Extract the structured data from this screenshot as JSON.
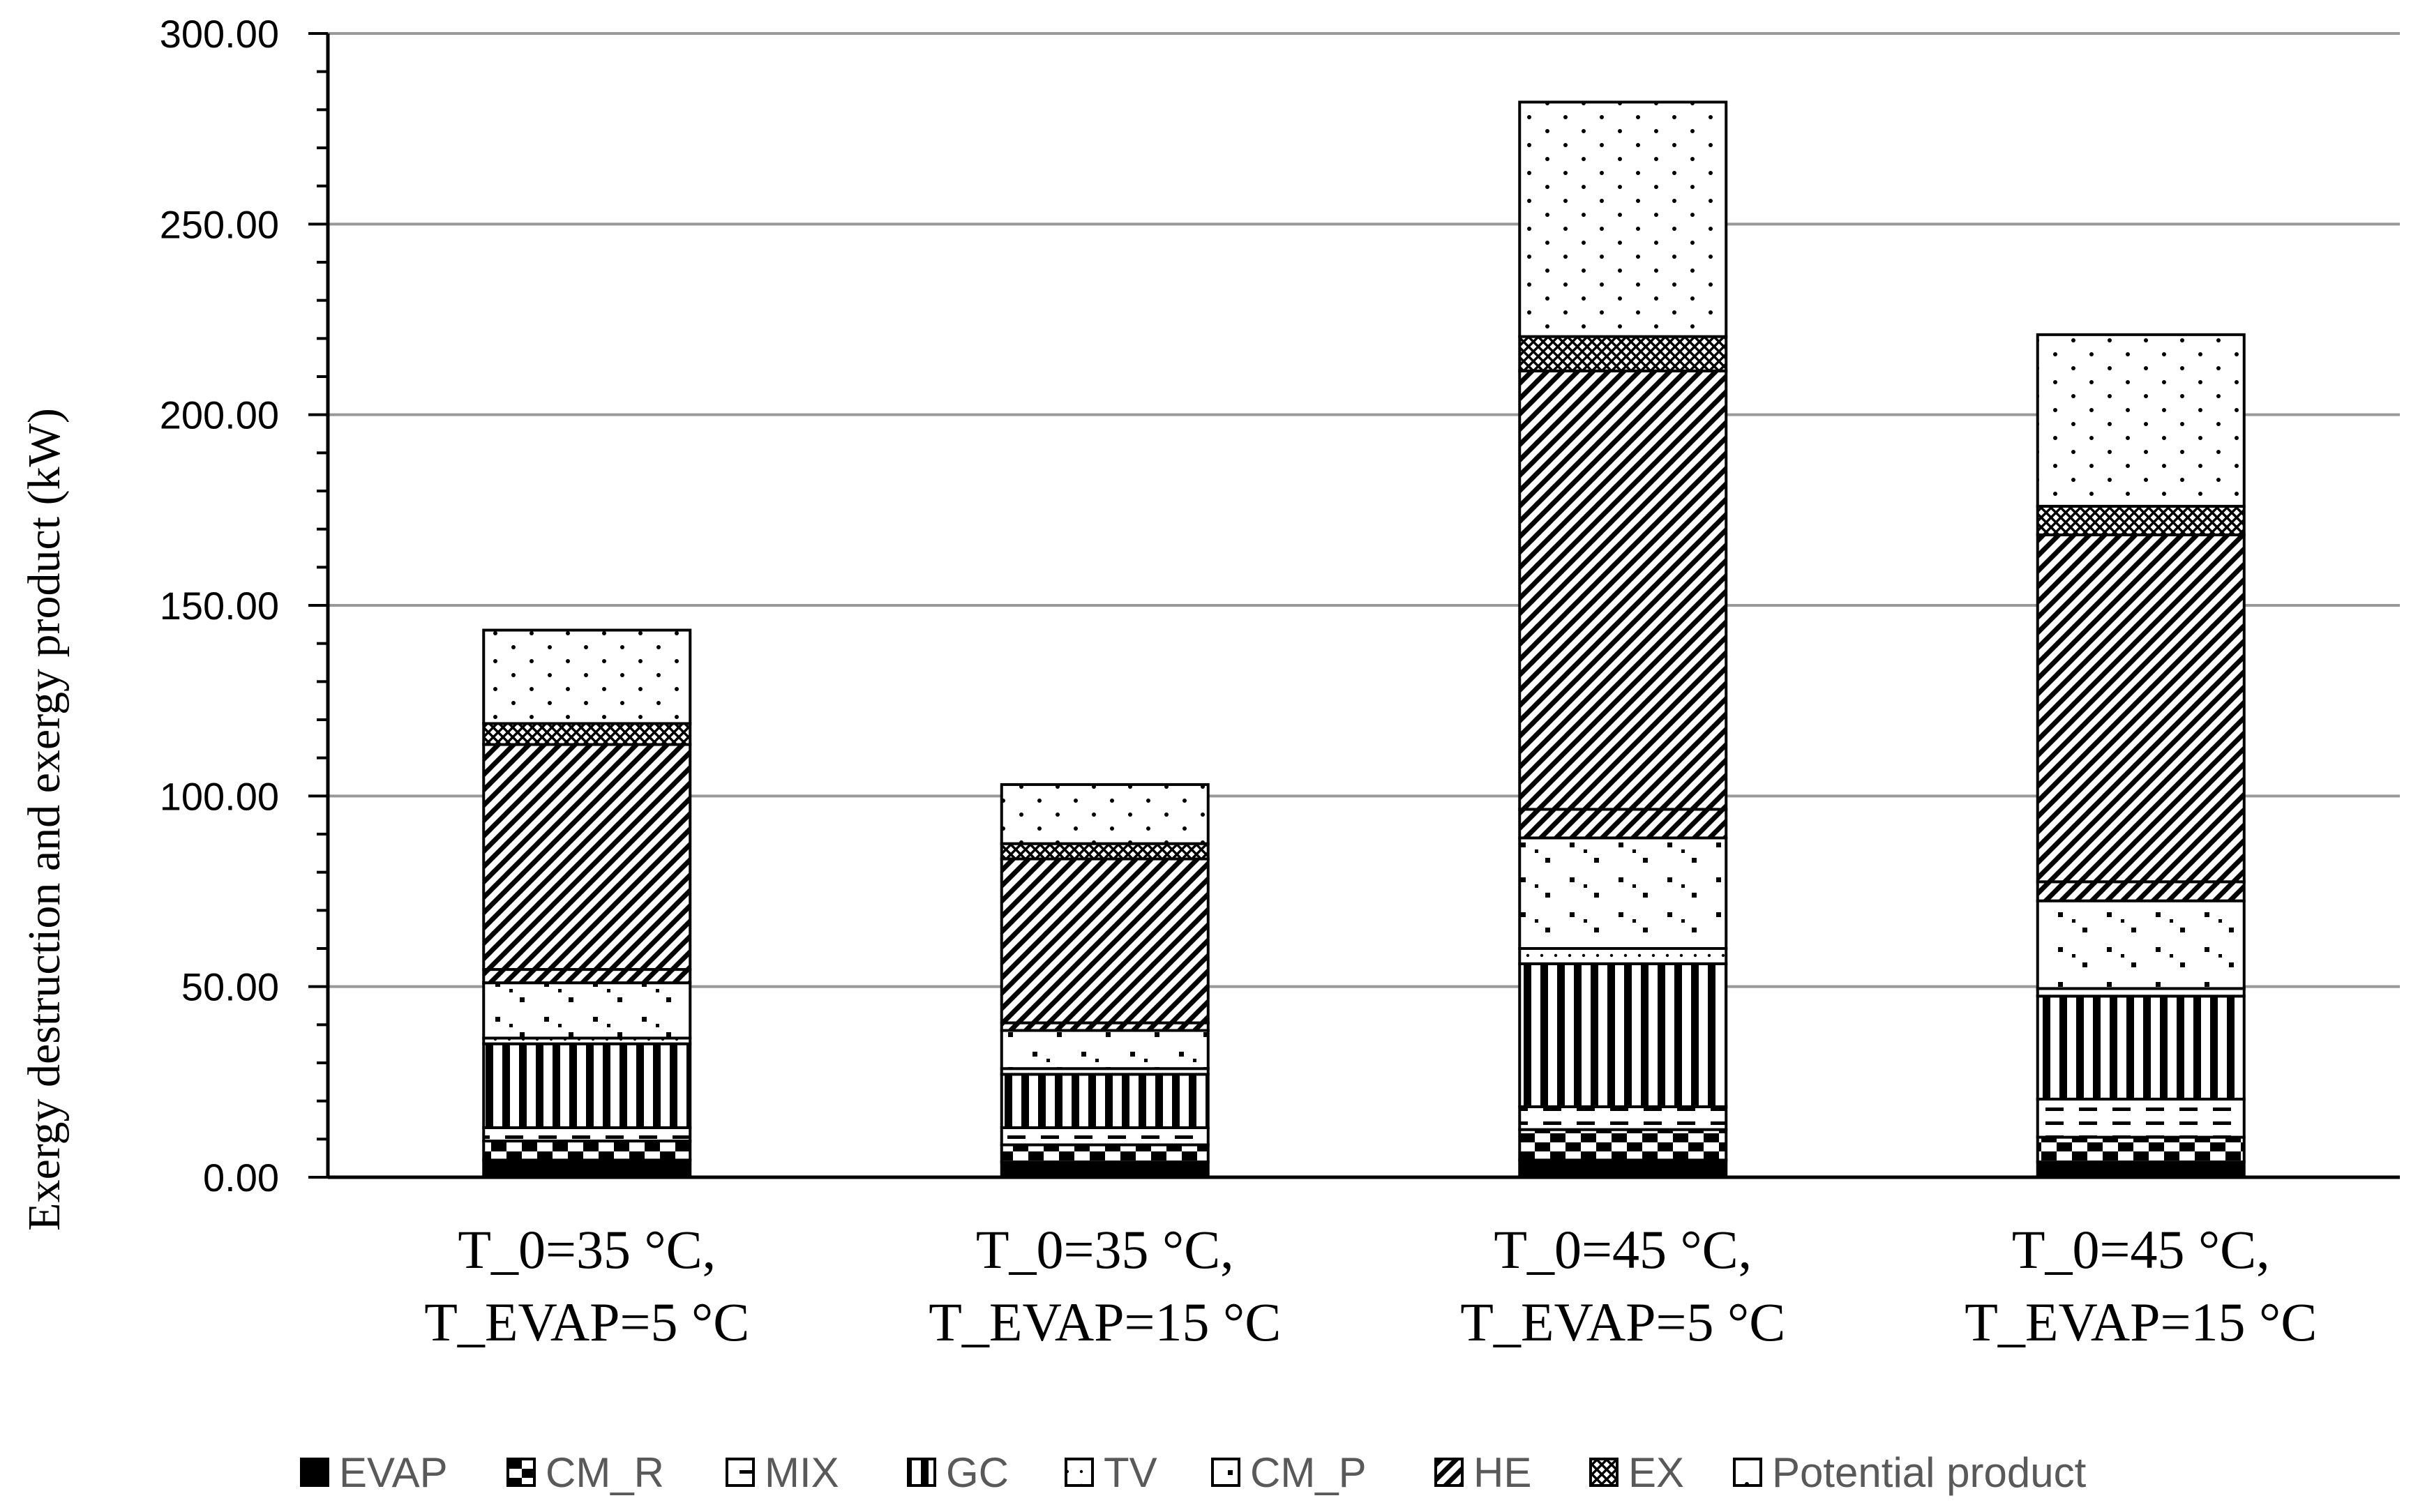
{
  "chart_data": {
    "type": "bar",
    "stacked": true,
    "title": "",
    "xlabel": "",
    "ylabel": "Exergy destruction and exergy product (kW)",
    "ylim": [
      0,
      300
    ],
    "yticks": [
      "0.00",
      "50.00",
      "100.00",
      "150.00",
      "200.00",
      "250.00",
      "300.00"
    ],
    "grid": true,
    "legend_position": "bottom",
    "categories": [
      [
        "T_0=35 °C,",
        "T_EVAP=5 °C"
      ],
      [
        "T_0=35 °C,",
        "T_EVAP=15 °C"
      ],
      [
        "T_0=45 °C,",
        "T_EVAP=5 °C"
      ],
      [
        "T_0=45 °C,",
        "T_EVAP=15 °C"
      ]
    ],
    "series": [
      {
        "name": "EVAP",
        "pattern": "solid-black",
        "values": [
          4.5,
          4.0,
          4.5,
          4.0
        ]
      },
      {
        "name": "CM_R",
        "pattern": "checker",
        "values": [
          5.0,
          4.5,
          8.0,
          6.5
        ]
      },
      {
        "name": "MIX",
        "pattern": "dashes",
        "values": [
          3.5,
          4.5,
          6.0,
          10.0
        ]
      },
      {
        "name": "GC",
        "pattern": "vertical-stripes",
        "values": [
          22.0,
          14.0,
          37.5,
          27.0
        ]
      },
      {
        "name": "TV",
        "pattern": "light-dots",
        "values": [
          1.5,
          1.5,
          4.0,
          2.0
        ]
      },
      {
        "name": "CM_P",
        "pattern": "sparse-marks",
        "values": [
          14.5,
          10.0,
          29.0,
          23.0
        ]
      },
      {
        "name": "HE",
        "pattern": "diagonal-hatch",
        "values": [
          3.5,
          2.0,
          7.5,
          5.0
        ]
      },
      {
        "name": "HE",
        "pattern": "diagonal-hatch",
        "values": [
          59.0,
          43.0,
          115.0,
          91.0
        ]
      },
      {
        "name": "EX",
        "pattern": "crosshatch",
        "values": [
          5.5,
          4.0,
          9.0,
          7.5
        ]
      },
      {
        "name": "Potential product",
        "pattern": "dots",
        "values": [
          24.5,
          15.5,
          61.5,
          45.0
        ]
      }
    ],
    "legend": [
      "EVAP",
      "CM_R",
      "MIX",
      "GC",
      "TV",
      "CM_P",
      "HE",
      "EX",
      "Potential product"
    ],
    "colors": {
      "axis": "#000000",
      "grid": "#999999",
      "legend_text": "#595959"
    }
  }
}
